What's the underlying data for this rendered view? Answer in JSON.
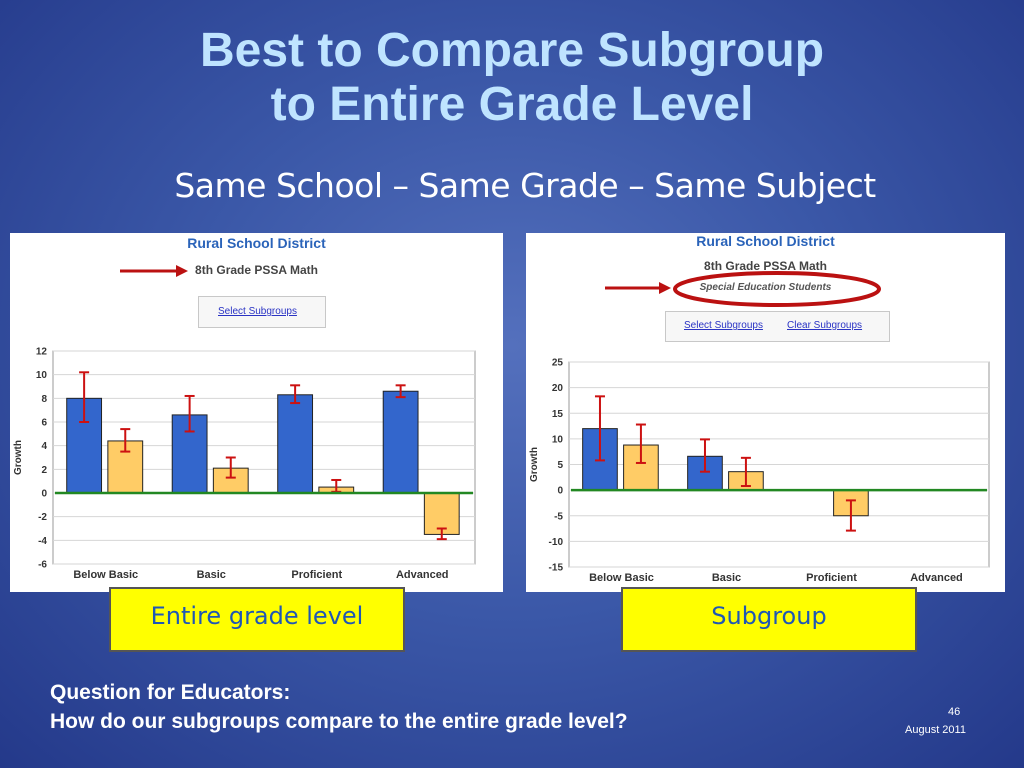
{
  "slide": {
    "title_line1": "Best to Compare Subgroup",
    "title_line2": "to Entire Grade Level",
    "subtitle": "Same School – Same Grade – Same Subject",
    "question_line1": "Question for Educators:",
    "question_line2": "How do our subgroups compare to the entire grade level?",
    "page_number": "46",
    "date": "August 2011"
  },
  "left_panel": {
    "district": "Rural School District",
    "grade": "8th Grade PSSA Math",
    "select_link": "Select Subgroups",
    "caption": "Entire grade level"
  },
  "right_panel": {
    "district": "Rural School District",
    "grade": "8th Grade PSSA Math",
    "subgroup": "Special Education Students",
    "select_link": "Select Subgroups",
    "clear_link": "Clear Subgroups",
    "caption": "Subgroup"
  },
  "colors": {
    "bar_blue": "#3366cc",
    "bar_orange": "#ffcc66",
    "error_bar": "#cc1111",
    "zero_line": "#228822",
    "arrow": "#bb1111"
  },
  "chart_data": [
    {
      "type": "bar",
      "ylabel": "Growth",
      "categories": [
        "Below Basic",
        "Basic",
        "Proficient",
        "Advanced"
      ],
      "ylim": [
        -6,
        12
      ],
      "yticks": [
        12,
        10,
        8,
        6,
        4,
        2,
        0,
        -2,
        -4,
        -6
      ],
      "series": [
        {
          "values": [
            8,
            6.6,
            8.3,
            8.6
          ],
          "err_low": [
            6.0,
            5.2,
            7.6,
            8.1
          ],
          "err_high": [
            10.2,
            8.2,
            9.1,
            9.1
          ]
        },
        {
          "values": [
            4.4,
            2.1,
            0.5,
            -3.5
          ],
          "err_low": [
            3.5,
            1.3,
            0.1,
            -3.9
          ],
          "err_high": [
            5.4,
            3.0,
            1.1,
            -3.0
          ]
        }
      ]
    },
    {
      "type": "bar",
      "ylabel": "Growth",
      "categories": [
        "Below Basic",
        "Basic",
        "Proficient",
        "Advanced"
      ],
      "ylim": [
        -15,
        25
      ],
      "yticks": [
        25,
        20,
        15,
        10,
        5,
        0,
        -5,
        -10,
        -15
      ],
      "series": [
        {
          "values": [
            12,
            6.6,
            null,
            null
          ],
          "err_low": [
            5.8,
            3.6,
            null,
            null
          ],
          "err_high": [
            18.3,
            9.9,
            null,
            null
          ]
        },
        {
          "values": [
            8.8,
            3.6,
            -5.0,
            null
          ],
          "err_low": [
            5.3,
            0.8,
            -7.9,
            null
          ],
          "err_high": [
            12.8,
            6.3,
            -2.0,
            null
          ]
        }
      ]
    }
  ]
}
